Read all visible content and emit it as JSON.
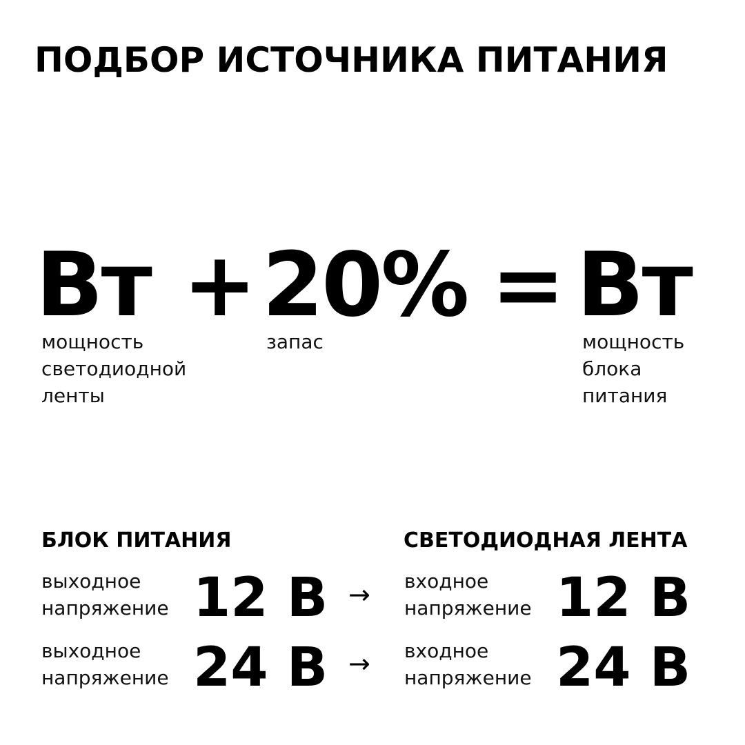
{
  "title": "ПОДБОР ИСТОЧНИКА ПИТАНИЯ",
  "formula": {
    "term1": "Вт",
    "plus": "+",
    "term2": "20%",
    "equals": "=",
    "result": "Вт",
    "caption1": [
      "мощность",
      "светодиодной",
      "ленты"
    ],
    "caption2": [
      "запас"
    ],
    "caption3": [
      "мощность",
      "блока",
      "питания"
    ]
  },
  "left": {
    "heading": "БЛОК ПИТАНИЯ",
    "rows": [
      {
        "label": [
          "выходное",
          "напряжение"
        ],
        "value": "12 В"
      },
      {
        "label": [
          "выходное",
          "напряжение"
        ],
        "value": "24 В"
      }
    ]
  },
  "right": {
    "heading": "СВЕТОДИОДНАЯ ЛЕНТА",
    "rows": [
      {
        "label": [
          "входное",
          "напряжение"
        ],
        "value": "12 В"
      },
      {
        "label": [
          "входное",
          "напряжение"
        ],
        "value": "24 В"
      }
    ]
  },
  "arrow": "→"
}
